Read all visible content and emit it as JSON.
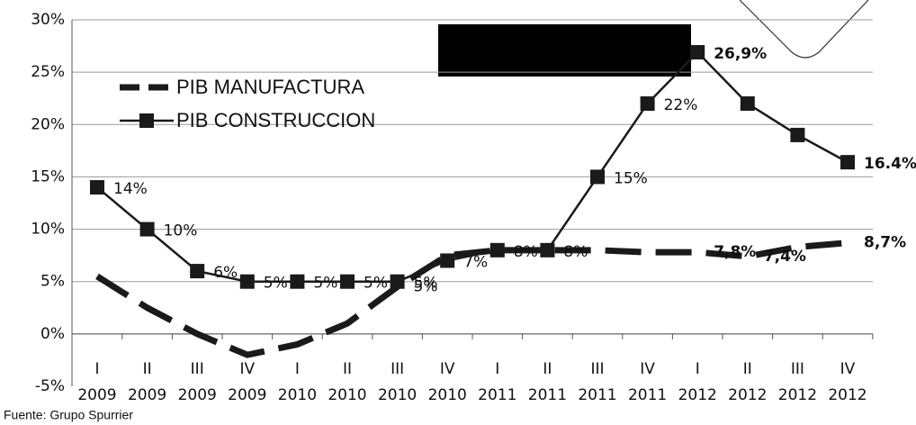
{
  "chart_data": {
    "type": "line",
    "categories": [
      [
        "I",
        "2009"
      ],
      [
        "II",
        "2009"
      ],
      [
        "III",
        "2009"
      ],
      [
        "IV",
        "2009"
      ],
      [
        "I",
        "2010"
      ],
      [
        "II",
        "2010"
      ],
      [
        "III",
        "2010"
      ],
      [
        "IV",
        "2010"
      ],
      [
        "I",
        "2011"
      ],
      [
        "II",
        "2011"
      ],
      [
        "III",
        "2011"
      ],
      [
        "IV",
        "2011"
      ],
      [
        "I",
        "2012"
      ],
      [
        "II",
        "2012"
      ],
      [
        "III",
        "2012"
      ],
      [
        "IV",
        "2012"
      ]
    ],
    "series": [
      {
        "name": "PIB MANUFACTURA",
        "color": "#1a1a1a",
        "dashed": true,
        "values": [
          5.5,
          2.5,
          0,
          -2,
          -1,
          1,
          4.5,
          7.5,
          8,
          8,
          8,
          7.8,
          7.8,
          7.4,
          8.3,
          8.7
        ],
        "value_labels": [
          null,
          null,
          null,
          null,
          null,
          null,
          "5%",
          null,
          null,
          null,
          null,
          null,
          "7,8%",
          "7,4%",
          null,
          "8,7%"
        ]
      },
      {
        "name": "PIB CONSTRUCCION",
        "color": "#1a1a1a",
        "dashed": false,
        "values": [
          14,
          10,
          6,
          5,
          5,
          5,
          5,
          7,
          8,
          8,
          15,
          22,
          26.9,
          22,
          19,
          16.4
        ],
        "value_labels": [
          "14%",
          "10%",
          "6%",
          "5%",
          "5%",
          "5%",
          "5%",
          "7%",
          "8%",
          "8%",
          "15%",
          "22%",
          "26,9%",
          null,
          null,
          "16.4%"
        ]
      }
    ],
    "ylim": [
      -5,
      30
    ],
    "yticks": [
      {
        "value": -5,
        "label": "-5%"
      },
      {
        "value": 0,
        "label": "0%"
      },
      {
        "value": 5,
        "label": "5%"
      },
      {
        "value": 10,
        "label": "10%"
      },
      {
        "value": 15,
        "label": "15%"
      },
      {
        "value": 20,
        "label": "20%"
      },
      {
        "value": 25,
        "label": "25%"
      },
      {
        "value": 30,
        "label": "30%"
      }
    ],
    "grid": true,
    "legend": "upper left",
    "source": "Fuente: Grupo Spurrier"
  }
}
